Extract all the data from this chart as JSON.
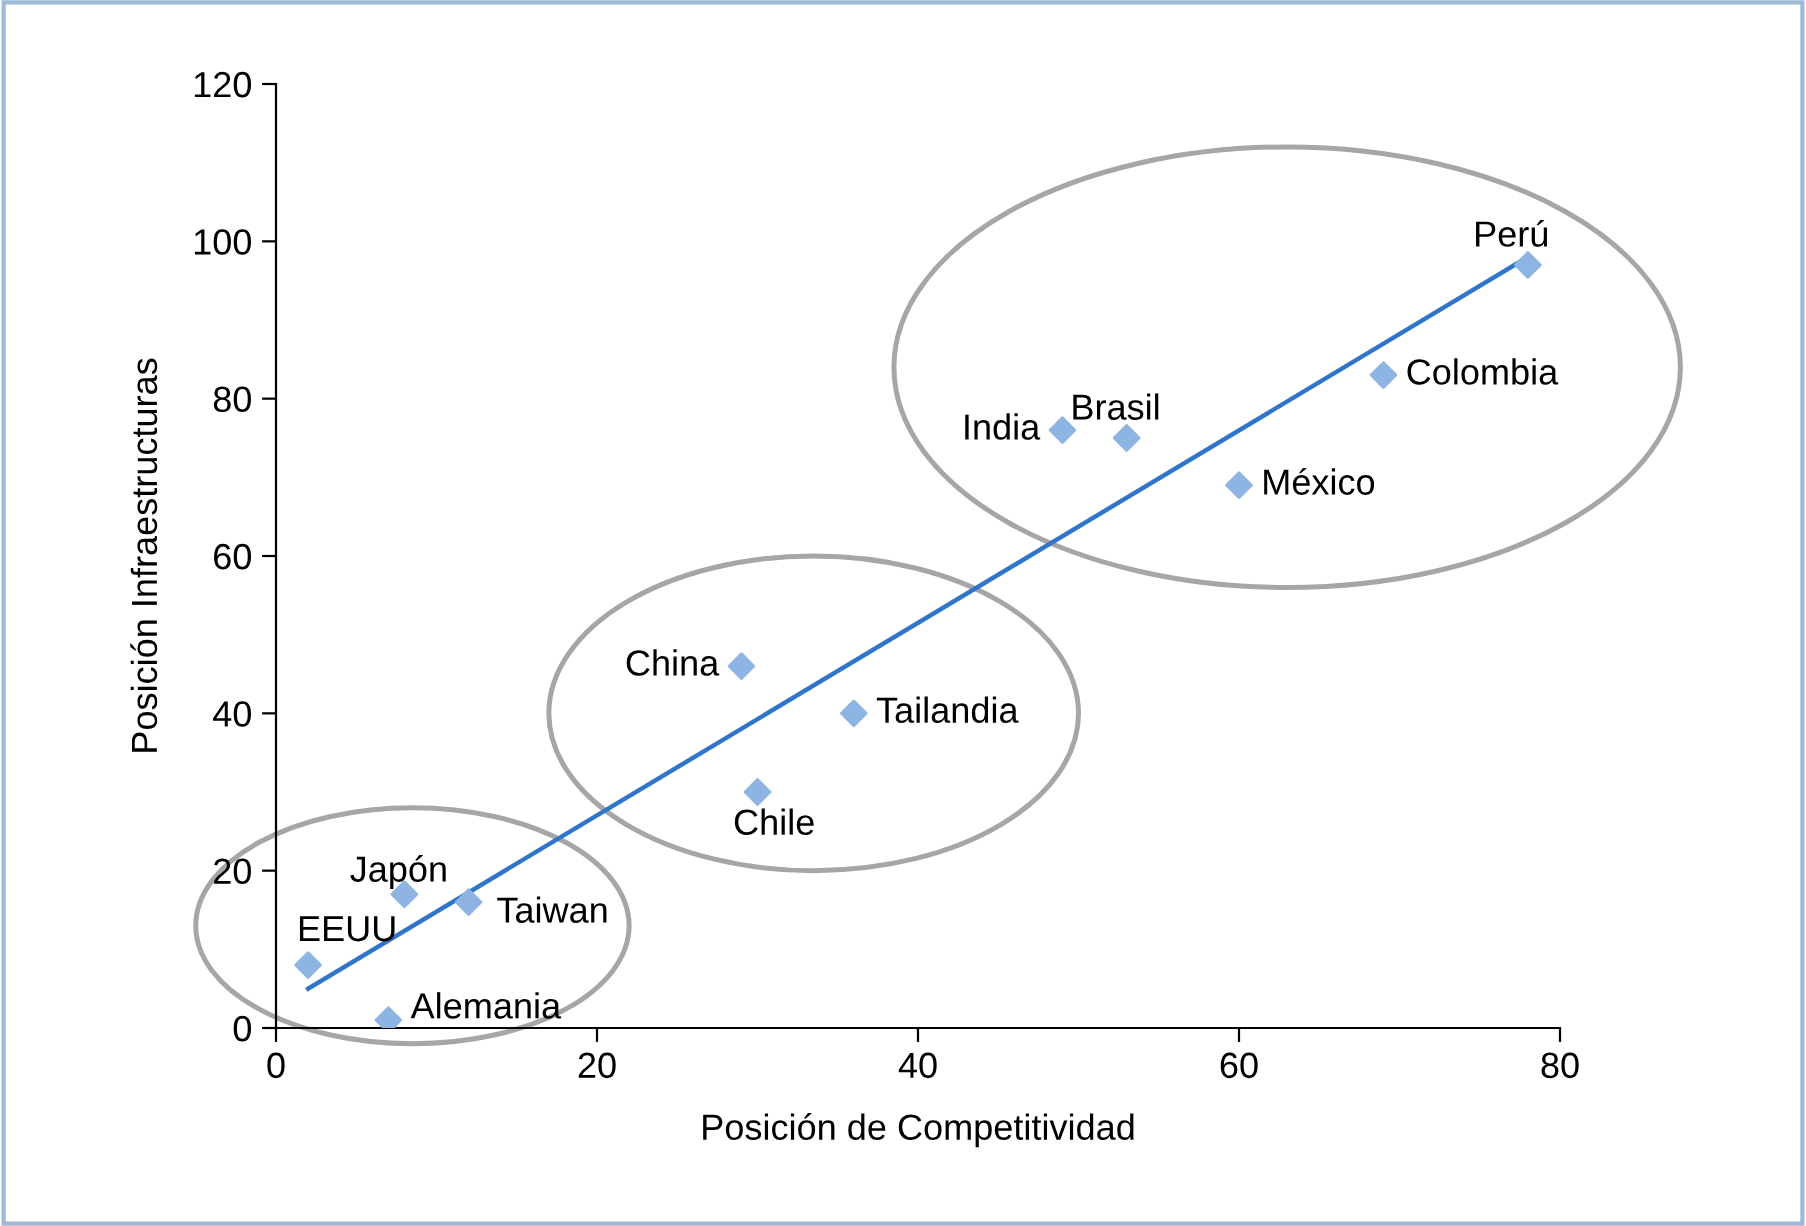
{
  "chart_data": {
    "type": "scatter",
    "xlabel": "Posición de Competitividad",
    "ylabel": "Posición Infraestructuras",
    "x": [
      2,
      7,
      8,
      12,
      29,
      30,
      36,
      49,
      53,
      60,
      69,
      78
    ],
    "series": [
      {
        "color": "#8db4e2",
        "marker": "diamond",
        "values": [
          8,
          1,
          17,
          16,
          46,
          30,
          40,
          76,
          75,
          69,
          83,
          97
        ]
      },
      {
        "type": "line",
        "color": "#2f75cc",
        "marker": "none",
        "x": [
          2,
          78
        ],
        "values": [
          5,
          98
        ]
      }
    ],
    "annotations": [
      {
        "text": "EEUU",
        "x": 2,
        "y": 8
      },
      {
        "text": "Alemania",
        "x": 7,
        "y": 1
      },
      {
        "text": "Japón",
        "x": 8,
        "y": 17
      },
      {
        "text": "Taiwan",
        "x": 12,
        "y": 16
      },
      {
        "text": "China",
        "x": 29,
        "y": 46
      },
      {
        "text": "Chile",
        "x": 30,
        "y": 30
      },
      {
        "text": "Tailandia",
        "x": 36,
        "y": 40
      },
      {
        "text": "India",
        "x": 49,
        "y": 76
      },
      {
        "text": "Brasil",
        "x": 53,
        "y": 75
      },
      {
        "text": "México",
        "x": 60,
        "y": 69
      },
      {
        "text": "Colombia",
        "x": 69,
        "y": 83
      },
      {
        "text": "Perú",
        "x": 78,
        "y": 97
      }
    ],
    "xlim": [
      0,
      80
    ],
    "xticks": [
      0,
      20,
      40,
      60,
      80
    ],
    "ylim": [
      0,
      120
    ],
    "yticks": [
      0,
      20,
      40,
      60,
      80,
      100,
      120
    ],
    "grid": false,
    "legend": false
  }
}
